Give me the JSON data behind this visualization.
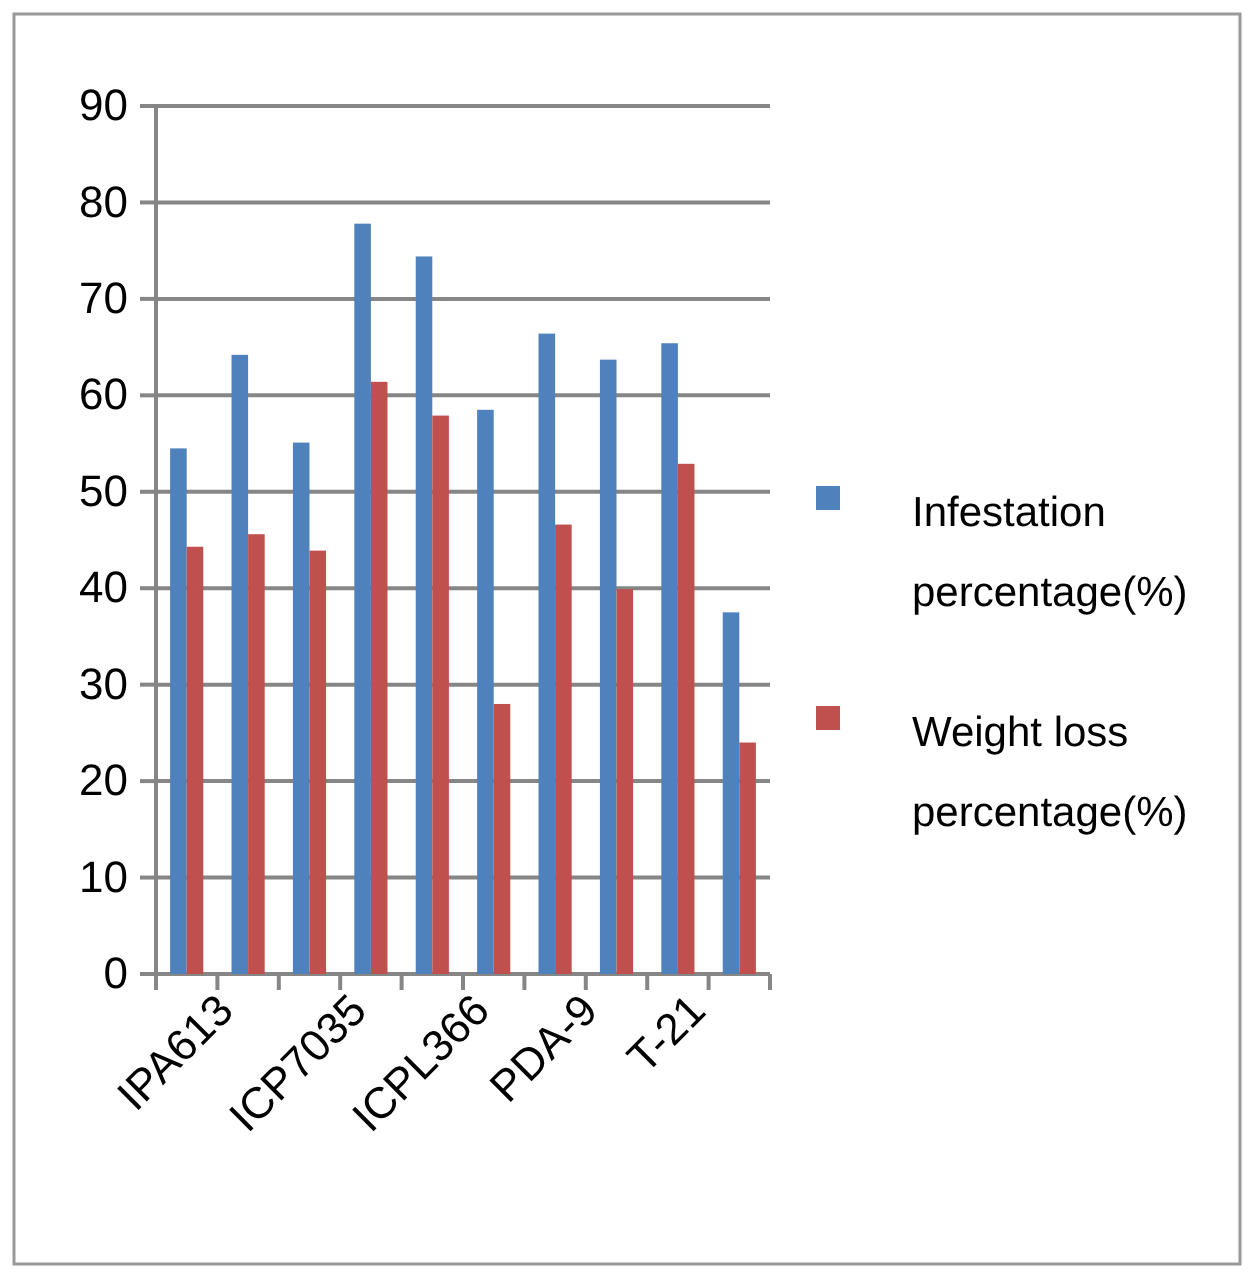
{
  "chart_data": {
    "type": "bar",
    "categories": [
      "IPA613",
      null,
      "ICP7035",
      null,
      "ICPL366",
      null,
      "PDA-9",
      null,
      "T-21",
      null
    ],
    "series": [
      {
        "name": "Infestation percentage(%)",
        "color": "#4f81bd",
        "values": [
          54.5,
          64.2,
          55.1,
          77.8,
          74.4,
          58.5,
          66.4,
          63.7,
          65.4,
          37.5
        ]
      },
      {
        "name": "Weight loss percentage(%)",
        "color": "#c0504d",
        "values": [
          44.3,
          45.6,
          43.9,
          61.4,
          57.9,
          28.0,
          46.6,
          39.9,
          52.9,
          24.0
        ]
      }
    ],
    "ylim": [
      0,
      90
    ],
    "yticks": [
      0,
      10,
      20,
      30,
      40,
      50,
      60,
      70,
      80,
      90
    ],
    "grid": "y",
    "legend": "right"
  }
}
